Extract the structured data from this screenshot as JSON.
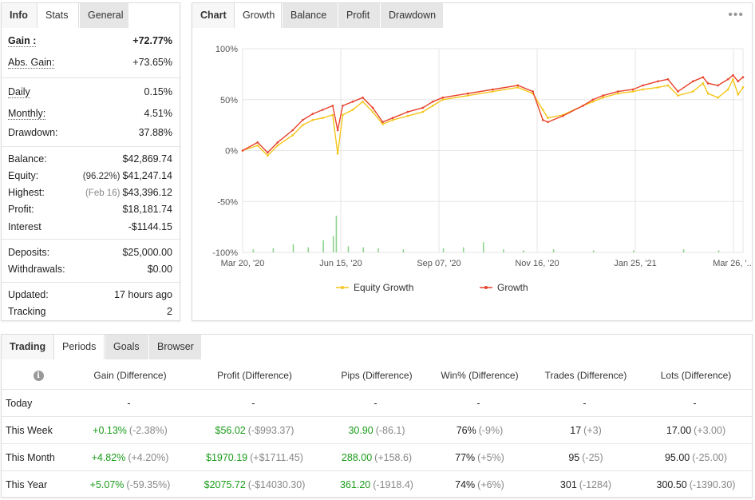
{
  "info_panel": {
    "tabs": [
      "Info",
      "Stats",
      "General"
    ],
    "rows": [
      {
        "label": "Gain :",
        "value": "+72.77%"
      },
      {
        "label": "Abs. Gain:",
        "value": "+73.65%"
      },
      {
        "label": "Daily",
        "value": "0.15%"
      },
      {
        "label": "Monthly:",
        "value": "4.51%"
      },
      {
        "label": "Drawdown:",
        "value": "37.88%"
      },
      {
        "label": "Balance:",
        "value": "$42,869.74"
      },
      {
        "label": "Equity:",
        "sub": "(96.22%)",
        "value": "$41,247.14"
      },
      {
        "label": "Highest:",
        "sub": "(Feb 16)",
        "value": "$43,396.12"
      },
      {
        "label": "Profit:",
        "value": "$18,181.74"
      },
      {
        "label": "Interest",
        "value": "-$1144.15"
      },
      {
        "label": "Deposits:",
        "value": "$25,000.00"
      },
      {
        "label": "Withdrawals:",
        "value": "$0.00"
      },
      {
        "label": "Updated:",
        "value": "17 hours ago"
      },
      {
        "label": "Tracking",
        "value": "2"
      }
    ]
  },
  "chart_panel": {
    "tabs": [
      "Chart",
      "Growth",
      "Balance",
      "Profit",
      "Drawdown"
    ],
    "menu_icon": "more-horizontal-icon"
  },
  "chart_data": {
    "type": "line",
    "ylim": [
      -100,
      100
    ],
    "y_ticks": [
      "100%",
      "50%",
      "0%",
      "-50%",
      "-100%"
    ],
    "x_ticks": [
      "Mar 20, '20",
      "Jun 15, '20",
      "Sep 07, '20",
      "Nov 16, '20",
      "Jan 25, '21",
      "Mar 26, '..."
    ],
    "x_range": [
      0,
      100
    ],
    "series": [
      {
        "name": "Equity Growth",
        "color": "#f5c518",
        "x": [
          0,
          3,
          5,
          7,
          10,
          12,
          14,
          16,
          18,
          19,
          20,
          22,
          24,
          26,
          28,
          30,
          33,
          36,
          38,
          40,
          45,
          50,
          55,
          58,
          60,
          61,
          64,
          68,
          70,
          72,
          75,
          78,
          80,
          83,
          85,
          87,
          90,
          92,
          93,
          95,
          97,
          98,
          99,
          100
        ],
        "y": [
          0,
          5,
          -5,
          5,
          15,
          25,
          30,
          32,
          35,
          -3,
          35,
          40,
          48,
          38,
          26,
          30,
          34,
          38,
          44,
          50,
          54,
          58,
          62,
          56,
          40,
          32,
          35,
          44,
          48,
          52,
          56,
          58,
          60,
          62,
          64,
          54,
          58,
          66,
          56,
          52,
          60,
          70,
          55,
          62
        ]
      },
      {
        "name": "Growth",
        "color": "#e8412c",
        "x": [
          0,
          3,
          5,
          7,
          10,
          12,
          14,
          16,
          18,
          19,
          20,
          22,
          24,
          26,
          28,
          30,
          33,
          36,
          38,
          40,
          45,
          50,
          55,
          58,
          60,
          61,
          64,
          68,
          70,
          72,
          75,
          78,
          80,
          83,
          85,
          87,
          90,
          92,
          93,
          95,
          97,
          98,
          99,
          100
        ],
        "y": [
          0,
          8,
          -2,
          8,
          20,
          30,
          36,
          40,
          44,
          20,
          44,
          48,
          52,
          42,
          28,
          32,
          38,
          42,
          48,
          52,
          56,
          60,
          64,
          58,
          30,
          28,
          34,
          44,
          50,
          54,
          58,
          60,
          64,
          68,
          70,
          58,
          68,
          72,
          66,
          64,
          70,
          74,
          68,
          72
        ]
      }
    ],
    "volume_bars": [
      {
        "x": 2,
        "h": 3
      },
      {
        "x": 6,
        "h": 4
      },
      {
        "x": 10,
        "h": 8
      },
      {
        "x": 13,
        "h": 5
      },
      {
        "x": 16,
        "h": 12
      },
      {
        "x": 18,
        "h": 16
      },
      {
        "x": 18.6,
        "h": 36
      },
      {
        "x": 21,
        "h": 6
      },
      {
        "x": 24,
        "h": 5
      },
      {
        "x": 27,
        "h": 4
      },
      {
        "x": 32,
        "h": 3
      },
      {
        "x": 40,
        "h": 4
      },
      {
        "x": 44,
        "h": 5
      },
      {
        "x": 48,
        "h": 10
      },
      {
        "x": 52,
        "h": 3
      },
      {
        "x": 56,
        "h": 2
      },
      {
        "x": 62,
        "h": 3
      },
      {
        "x": 70,
        "h": 2
      },
      {
        "x": 78,
        "h": 2
      },
      {
        "x": 88,
        "h": 3
      },
      {
        "x": 95,
        "h": 2
      }
    ]
  },
  "trading_panel": {
    "tabs": [
      "Trading",
      "Periods",
      "Goals",
      "Browser"
    ],
    "info_icon": "info-icon",
    "headers": [
      "Gain (Difference)",
      "Profit (Difference)",
      "Pips (Difference)",
      "Win% (Difference)",
      "Trades (Difference)",
      "Lots (Difference)"
    ],
    "rows": [
      {
        "period": "Today",
        "gain": "-",
        "gain_diff": "",
        "profit": "-",
        "profit_diff": "",
        "pips": "-",
        "pips_diff": "",
        "win": "-",
        "win_diff": "",
        "trades": "-",
        "trades_diff": "",
        "lots": "-",
        "lots_diff": ""
      },
      {
        "period": "This Week",
        "gain": "+0.13%",
        "gain_diff": "(-2.38%)",
        "profit": "$56.02",
        "profit_diff": "(-$993.37)",
        "pips": "30.90",
        "pips_diff": "(-86.1)",
        "win": "76%",
        "win_diff": "(-9%)",
        "trades": "17",
        "trades_diff": "(+3)",
        "lots": "17.00",
        "lots_diff": "(+3.00)"
      },
      {
        "period": "This Month",
        "gain": "+4.82%",
        "gain_diff": "(+4.20%)",
        "profit": "$1970.19",
        "profit_diff": "(+$1711.45)",
        "pips": "288.00",
        "pips_diff": "(+158.6)",
        "win": "77%",
        "win_diff": "(+5%)",
        "trades": "95",
        "trades_diff": "(-25)",
        "lots": "95.00",
        "lots_diff": "(-25.00)"
      },
      {
        "period": "This Year",
        "gain": "+5.07%",
        "gain_diff": "(-59.35%)",
        "profit": "$2075.72",
        "profit_diff": "(-$14030.30)",
        "pips": "361.20",
        "pips_diff": "(-1918.4)",
        "win": "74%",
        "win_diff": "(+6%)",
        "trades": "301",
        "trades_diff": "(-1284)",
        "lots": "300.50",
        "lots_diff": "(-1390.30)"
      }
    ]
  }
}
